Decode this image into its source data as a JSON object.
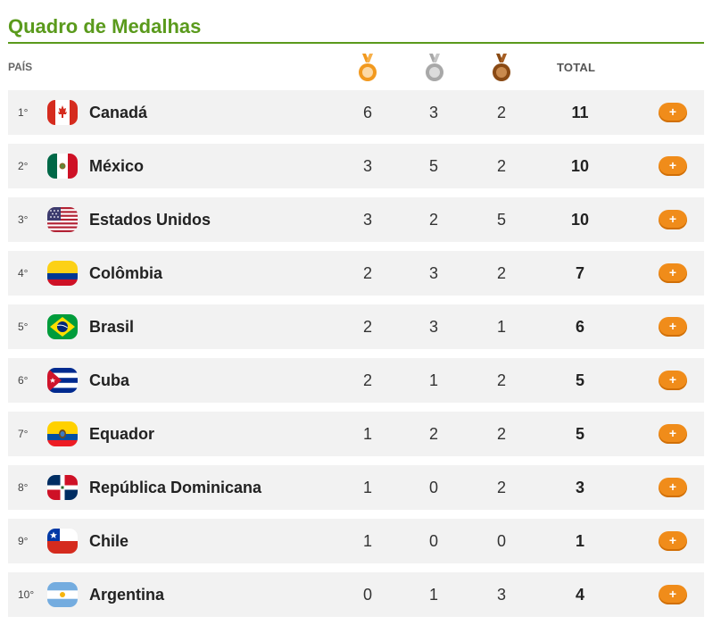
{
  "title": "Quadro de Medalhas",
  "columns": {
    "country": "PAÍS",
    "total": "TOTAL",
    "medal_icons": [
      "gold-medal-icon",
      "silver-medal-icon",
      "bronze-medal-icon"
    ]
  },
  "colors": {
    "title": "#5a9a1c",
    "gold": "#f2991e",
    "silver": "#a8a8a8",
    "bronze": "#8a4a14",
    "button": "#f08c1a"
  },
  "more_label": "+",
  "rows": [
    {
      "rank": "1°",
      "country": "Canadá",
      "flag": "canada-flag-icon",
      "gold": "6",
      "silver": "3",
      "bronze": "2",
      "total": "11"
    },
    {
      "rank": "2°",
      "country": "México",
      "flag": "mexico-flag-icon",
      "gold": "3",
      "silver": "5",
      "bronze": "2",
      "total": "10"
    },
    {
      "rank": "3°",
      "country": "Estados Unidos",
      "flag": "usa-flag-icon",
      "gold": "3",
      "silver": "2",
      "bronze": "5",
      "total": "10"
    },
    {
      "rank": "4°",
      "country": "Colômbia",
      "flag": "colombia-flag-icon",
      "gold": "2",
      "silver": "3",
      "bronze": "2",
      "total": "7"
    },
    {
      "rank": "5°",
      "country": "Brasil",
      "flag": "brazil-flag-icon",
      "gold": "2",
      "silver": "3",
      "bronze": "1",
      "total": "6"
    },
    {
      "rank": "6°",
      "country": "Cuba",
      "flag": "cuba-flag-icon",
      "gold": "2",
      "silver": "1",
      "bronze": "2",
      "total": "5"
    },
    {
      "rank": "7°",
      "country": "Equador",
      "flag": "ecuador-flag-icon",
      "gold": "1",
      "silver": "2",
      "bronze": "2",
      "total": "5"
    },
    {
      "rank": "8°",
      "country": "República Dominicana",
      "flag": "dominican-republic-flag-icon",
      "gold": "1",
      "silver": "0",
      "bronze": "2",
      "total": "3"
    },
    {
      "rank": "9°",
      "country": "Chile",
      "flag": "chile-flag-icon",
      "gold": "1",
      "silver": "0",
      "bronze": "0",
      "total": "1"
    },
    {
      "rank": "10°",
      "country": "Argentina",
      "flag": "argentina-flag-icon",
      "gold": "0",
      "silver": "1",
      "bronze": "3",
      "total": "4"
    }
  ]
}
